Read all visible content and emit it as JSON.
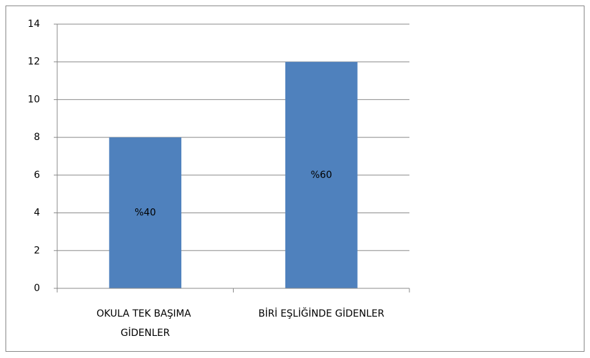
{
  "chart_data": {
    "type": "bar",
    "categories": [
      "OKULA TEK BAŞIMA GİDENLER",
      "BİRİ EŞLİĞİNDE GİDENLER"
    ],
    "values": [
      8,
      12
    ],
    "color": "#4f81bd",
    "annotations": [
      "%40",
      "%60"
    ],
    "ylim": [
      0,
      14
    ],
    "yticks": [
      0,
      2,
      4,
      6,
      8,
      10,
      12,
      14
    ],
    "grid": true
  }
}
